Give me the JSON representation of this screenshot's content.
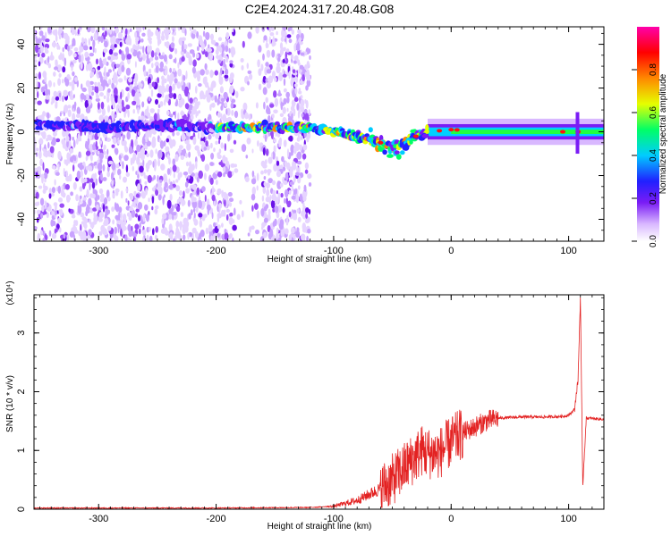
{
  "title": "C2E4.2024.317.20.48.G08",
  "chart_data": [
    {
      "type": "heatmap",
      "xlabel": "Height of straight line (km)",
      "ylabel": "Frequency (Hz)",
      "xlim": [
        -355,
        130
      ],
      "ylim": [
        -50,
        48
      ],
      "x_ticks": [
        "-300",
        "-200",
        "-100",
        "0",
        "100"
      ],
      "y_ticks": [
        "-40",
        "-20",
        "0",
        "20",
        "40"
      ],
      "colorbar": {
        "label": "Normalized spectral amplitude",
        "ticks": [
          "0.0",
          "0.2",
          "0.4",
          "0.6",
          "0.8"
        ],
        "range": [
          0,
          1
        ],
        "colors": [
          "#ffffff",
          "#d9b8ff",
          "#7a1cf5",
          "#2020ff",
          "#00ccff",
          "#00ff66",
          "#e6ff00",
          "#ff8800",
          "#ff0000",
          "#ff00aa"
        ]
      },
      "ridge": [
        {
          "x": -350,
          "y": 3
        },
        {
          "x": -320,
          "y": 3
        },
        {
          "x": -300,
          "y": 2
        },
        {
          "x": -250,
          "y": 3
        },
        {
          "x": -200,
          "y": 2
        },
        {
          "x": -150,
          "y": 2
        },
        {
          "x": -120,
          "y": 2
        },
        {
          "x": -100,
          "y": 0
        },
        {
          "x": -80,
          "y": -2
        },
        {
          "x": -60,
          "y": -5
        },
        {
          "x": -45,
          "y": -8
        },
        {
          "x": -35,
          "y": -3
        },
        {
          "x": -20,
          "y": 0
        },
        {
          "x": 0,
          "y": 1
        },
        {
          "x": 50,
          "y": 0
        },
        {
          "x": 100,
          "y": 0
        },
        {
          "x": 130,
          "y": 0
        }
      ]
    },
    {
      "type": "line",
      "xlabel": "Height of straight line (km)",
      "ylabel": "SNR (10 * v/v)",
      "yscale_label": "(x10⁴)",
      "xlim": [
        -355,
        130
      ],
      "ylim": [
        0,
        3.65
      ],
      "x_ticks": [
        "-300",
        "-200",
        "-100",
        "0",
        "100"
      ],
      "y_ticks": [
        "0",
        "1",
        "2",
        "3"
      ],
      "color": "#e32222",
      "series": [
        {
          "x": [
            -355,
            -200,
            -120,
            -100,
            -80,
            -60,
            -50,
            -40,
            -30,
            -25,
            -20,
            -10,
            0,
            10,
            20,
            30,
            40,
            60,
            80,
            95,
            100,
            105,
            108,
            110,
            112,
            115,
            130
          ],
          "y": [
            0.02,
            0.02,
            0.03,
            0.05,
            0.15,
            0.35,
            0.5,
            0.7,
            0.9,
            1.0,
            0.95,
            0.95,
            1.15,
            1.3,
            1.4,
            1.5,
            1.55,
            1.57,
            1.57,
            1.58,
            1.6,
            1.7,
            2.2,
            3.6,
            0.4,
            1.55,
            1.53
          ]
        }
      ]
    }
  ]
}
